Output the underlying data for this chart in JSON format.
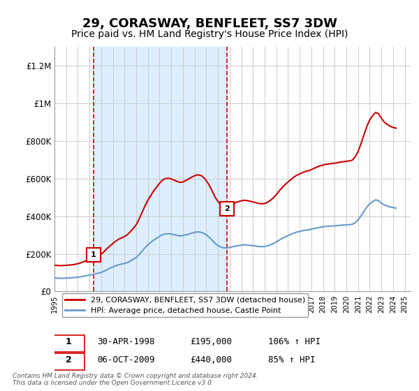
{
  "title": "29, CORASWAY, BENFLEET, SS7 3DW",
  "subtitle": "Price paid vs. HM Land Registry's House Price Index (HPI)",
  "ylabel": "",
  "xlabel": "",
  "ylim": [
    0,
    1300000
  ],
  "yticks": [
    0,
    200000,
    400000,
    600000,
    800000,
    1000000,
    1200000
  ],
  "ytick_labels": [
    "£0",
    "£200K",
    "£400K",
    "£600K",
    "£800K",
    "£1M",
    "£1.2M"
  ],
  "xlim_start": 1995.0,
  "xlim_end": 2025.5,
  "sale1_date": 1998.33,
  "sale1_price": 195000,
  "sale1_label": "1",
  "sale2_date": 2009.75,
  "sale2_price": 440000,
  "sale2_label": "2",
  "legend_line1": "29, CORASWAY, BENFLEET, SS7 3DW (detached house)",
  "legend_line2": "HPI: Average price, detached house, Castle Point",
  "table_row1": [
    "1",
    "30-APR-1998",
    "£195,000",
    "106% ↑ HPI"
  ],
  "table_row2": [
    "2",
    "06-OCT-2009",
    "£440,000",
    "85% ↑ HPI"
  ],
  "footnote": "Contains HM Land Registry data © Crown copyright and database right 2024.\nThis data is licensed under the Open Government Licence v3.0.",
  "red_line_color": "#cc0000",
  "blue_line_color": "#6699cc",
  "shade_color": "#ddeeff",
  "marker_box_color": "#cc0000",
  "background_color": "#ffffff",
  "title_fontsize": 13,
  "subtitle_fontsize": 10,
  "hpi_red": {
    "years": [
      1995.0,
      1995.25,
      1995.5,
      1995.75,
      1996.0,
      1996.25,
      1996.5,
      1996.75,
      1997.0,
      1997.25,
      1997.5,
      1997.75,
      1998.0,
      1998.25,
      1998.5,
      1998.75,
      1999.0,
      1999.25,
      1999.5,
      1999.75,
      2000.0,
      2000.25,
      2000.5,
      2000.75,
      2001.0,
      2001.25,
      2001.5,
      2001.75,
      2002.0,
      2002.25,
      2002.5,
      2002.75,
      2003.0,
      2003.25,
      2003.5,
      2003.75,
      2004.0,
      2004.25,
      2004.5,
      2004.75,
      2005.0,
      2005.25,
      2005.5,
      2005.75,
      2006.0,
      2006.25,
      2006.5,
      2006.75,
      2007.0,
      2007.25,
      2007.5,
      2007.75,
      2008.0,
      2008.25,
      2008.5,
      2008.75,
      2009.0,
      2009.25,
      2009.5,
      2009.75,
      2010.0,
      2010.25,
      2010.5,
      2010.75,
      2011.0,
      2011.25,
      2011.5,
      2011.75,
      2012.0,
      2012.25,
      2012.5,
      2012.75,
      2013.0,
      2013.25,
      2013.5,
      2013.75,
      2014.0,
      2014.25,
      2014.5,
      2014.75,
      2015.0,
      2015.25,
      2015.5,
      2015.75,
      2016.0,
      2016.25,
      2016.5,
      2016.75,
      2017.0,
      2017.25,
      2017.5,
      2017.75,
      2018.0,
      2018.25,
      2018.5,
      2018.75,
      2019.0,
      2019.25,
      2019.5,
      2019.75,
      2020.0,
      2020.25,
      2020.5,
      2020.75,
      2021.0,
      2021.25,
      2021.5,
      2021.75,
      2022.0,
      2022.25,
      2022.5,
      2022.75,
      2023.0,
      2023.25,
      2023.5,
      2023.75,
      2024.0,
      2024.25
    ],
    "values": [
      140000,
      138000,
      137000,
      138000,
      139000,
      140000,
      142000,
      144000,
      148000,
      152000,
      158000,
      165000,
      170000,
      177000,
      184000,
      190000,
      198000,
      212000,
      228000,
      242000,
      255000,
      268000,
      278000,
      285000,
      292000,
      302000,
      318000,
      335000,
      355000,
      385000,
      420000,
      455000,
      485000,
      510000,
      535000,
      555000,
      575000,
      592000,
      600000,
      602000,
      598000,
      592000,
      585000,
      580000,
      582000,
      590000,
      598000,
      608000,
      615000,
      620000,
      618000,
      608000,
      590000,
      565000,
      535000,
      502000,
      478000,
      462000,
      455000,
      453000,
      458000,
      465000,
      472000,
      478000,
      482000,
      485000,
      483000,
      480000,
      476000,
      472000,
      468000,
      466000,
      468000,
      474000,
      485000,
      498000,
      515000,
      535000,
      552000,
      568000,
      582000,
      595000,
      608000,
      618000,
      625000,
      632000,
      638000,
      642000,
      648000,
      655000,
      662000,
      668000,
      672000,
      676000,
      678000,
      680000,
      682000,
      685000,
      688000,
      690000,
      692000,
      694000,
      698000,
      715000,
      745000,
      785000,
      832000,
      878000,
      912000,
      935000,
      952000,
      945000,
      920000,
      900000,
      888000,
      878000,
      872000,
      868000
    ]
  },
  "hpi_blue": {
    "years": [
      1995.0,
      1995.25,
      1995.5,
      1995.75,
      1996.0,
      1996.25,
      1996.5,
      1996.75,
      1997.0,
      1997.25,
      1997.5,
      1997.75,
      1998.0,
      1998.25,
      1998.5,
      1998.75,
      1999.0,
      1999.25,
      1999.5,
      1999.75,
      2000.0,
      2000.25,
      2000.5,
      2000.75,
      2001.0,
      2001.25,
      2001.5,
      2001.75,
      2002.0,
      2002.25,
      2002.5,
      2002.75,
      2003.0,
      2003.25,
      2003.5,
      2003.75,
      2004.0,
      2004.25,
      2004.5,
      2004.75,
      2005.0,
      2005.25,
      2005.5,
      2005.75,
      2006.0,
      2006.25,
      2006.5,
      2006.75,
      2007.0,
      2007.25,
      2007.5,
      2007.75,
      2008.0,
      2008.25,
      2008.5,
      2008.75,
      2009.0,
      2009.25,
      2009.5,
      2009.75,
      2010.0,
      2010.25,
      2010.5,
      2010.75,
      2011.0,
      2011.25,
      2011.5,
      2011.75,
      2012.0,
      2012.25,
      2012.5,
      2012.75,
      2013.0,
      2013.25,
      2013.5,
      2013.75,
      2014.0,
      2014.25,
      2014.5,
      2014.75,
      2015.0,
      2015.25,
      2015.5,
      2015.75,
      2016.0,
      2016.25,
      2016.5,
      2016.75,
      2017.0,
      2017.25,
      2017.5,
      2017.75,
      2018.0,
      2018.25,
      2018.5,
      2018.75,
      2019.0,
      2019.25,
      2019.5,
      2019.75,
      2020.0,
      2020.25,
      2020.5,
      2020.75,
      2021.0,
      2021.25,
      2021.5,
      2021.75,
      2022.0,
      2022.25,
      2022.5,
      2022.75,
      2023.0,
      2023.25,
      2023.5,
      2023.75,
      2024.0,
      2024.25
    ],
    "values": [
      72000,
      71000,
      70000,
      70000,
      71000,
      72000,
      73000,
      74000,
      76000,
      78000,
      81000,
      84000,
      87000,
      90000,
      94000,
      97000,
      101000,
      108000,
      116000,
      124000,
      130000,
      137000,
      142000,
      146000,
      149000,
      154000,
      162000,
      171000,
      181000,
      196000,
      214000,
      232000,
      248000,
      261000,
      273000,
      283000,
      293000,
      302000,
      306000,
      307000,
      305000,
      302000,
      298000,
      296000,
      297000,
      301000,
      305000,
      310000,
      314000,
      317000,
      315000,
      310000,
      301000,
      288000,
      273000,
      256000,
      244000,
      236000,
      232000,
      231000,
      234000,
      238000,
      241000,
      244000,
      246000,
      248000,
      247000,
      245000,
      243000,
      241000,
      239000,
      238000,
      239000,
      242000,
      248000,
      255000,
      263000,
      273000,
      282000,
      290000,
      297000,
      304000,
      310000,
      316000,
      319000,
      323000,
      326000,
      328000,
      331000,
      335000,
      338000,
      341000,
      344000,
      346000,
      347000,
      348000,
      349000,
      350000,
      352000,
      353000,
      354000,
      355000,
      357000,
      365000,
      381000,
      402000,
      426000,
      449000,
      466000,
      478000,
      487000,
      483000,
      470000,
      460000,
      454000,
      449000,
      446000,
      443000
    ]
  }
}
